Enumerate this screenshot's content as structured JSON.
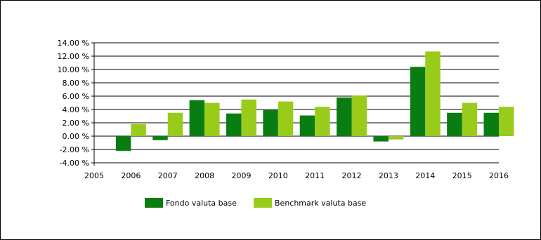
{
  "chart_data": {
    "type": "bar",
    "categories": [
      "2005",
      "2006",
      "2007",
      "2008",
      "2009",
      "2010",
      "2011",
      "2012",
      "2013",
      "2014",
      "2015",
      "2016"
    ],
    "series": [
      {
        "name": "Fondo valuta base",
        "color": "#0a7d12",
        "values": [
          null,
          -2.2,
          -0.6,
          5.4,
          3.4,
          3.9,
          3.1,
          5.8,
          -0.8,
          10.4,
          3.5,
          3.5
        ]
      },
      {
        "name": "Benchmark valuta base",
        "color": "#99cc1a",
        "values": [
          null,
          1.8,
          3.5,
          5.0,
          5.5,
          5.2,
          4.4,
          6.1,
          -0.5,
          12.7,
          5.0,
          4.4
        ]
      }
    ],
    "ylim": [
      -4,
      14
    ],
    "yticks": [
      -4,
      -2,
      0,
      2,
      4,
      6,
      8,
      10,
      12,
      14
    ],
    "ytick_labels": [
      "-4.00 %",
      "-2.00 %",
      "0.00 %",
      "2.00 %",
      "4.00 %",
      "6.00 %",
      "8.00 %",
      "10.00 %",
      "12.00 %",
      "14.00 %"
    ],
    "grid": true,
    "legend_position": "bottom"
  }
}
